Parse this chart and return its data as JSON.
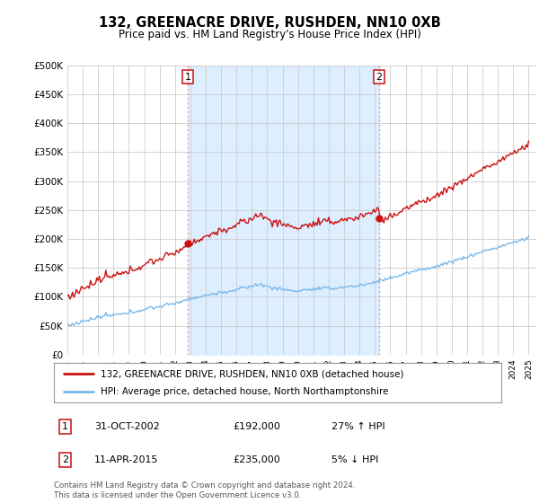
{
  "title": "132, GREENACRE DRIVE, RUSHDEN, NN10 0XB",
  "subtitle": "Price paid vs. HM Land Registry's House Price Index (HPI)",
  "legend_line1": "132, GREENACRE DRIVE, RUSHDEN, NN10 0XB (detached house)",
  "legend_line2": "HPI: Average price, detached house, North Northamptonshire",
  "transaction1_date": "31-OCT-2002",
  "transaction1_price": "£192,000",
  "transaction1_hpi": "27% ↑ HPI",
  "transaction2_date": "11-APR-2015",
  "transaction2_price": "£235,000",
  "transaction2_hpi": "5% ↓ HPI",
  "footer": "Contains HM Land Registry data © Crown copyright and database right 2024.\nThis data is licensed under the Open Government Licence v3.0.",
  "hpi_color": "#7ab8e8",
  "price_color": "#cc1111",
  "vline_color": "#e87070",
  "fill_color": "#ddeeff",
  "background_color": "#ffffff",
  "plot_bg_color": "#ffffff",
  "grid_color": "#cccccc",
  "ylim": [
    0,
    500000
  ],
  "yticks": [
    0,
    50000,
    100000,
    150000,
    200000,
    250000,
    300000,
    350000,
    400000,
    450000,
    500000
  ],
  "year_start": 1995,
  "year_end": 2025,
  "transaction1_year": 2002.83,
  "transaction2_year": 2015.28,
  "transaction1_value": 192000,
  "transaction2_value": 235000
}
